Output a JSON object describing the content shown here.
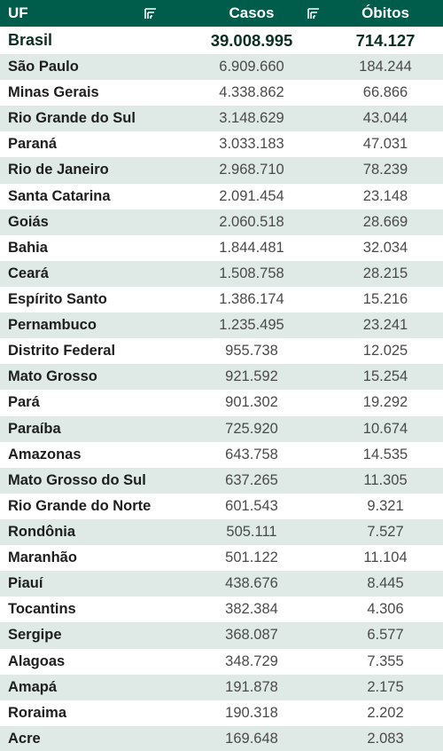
{
  "header": {
    "uf": "UF",
    "casos": "Casos",
    "obitos": "Óbitos"
  },
  "total": {
    "uf": "Brasil",
    "casos": "39.008.995",
    "obitos": "714.127"
  },
  "rows": [
    {
      "uf": "São Paulo",
      "casos": "6.909.660",
      "obitos": "184.244"
    },
    {
      "uf": "Minas Gerais",
      "casos": "4.338.862",
      "obitos": "66.866"
    },
    {
      "uf": "Rio Grande do Sul",
      "casos": "3.148.629",
      "obitos": "43.044"
    },
    {
      "uf": "Paraná",
      "casos": "3.033.183",
      "obitos": "47.031"
    },
    {
      "uf": "Rio de Janeiro",
      "casos": "2.968.710",
      "obitos": "78.239"
    },
    {
      "uf": "Santa Catarina",
      "casos": "2.091.454",
      "obitos": "23.148"
    },
    {
      "uf": "Goiás",
      "casos": "2.060.518",
      "obitos": "28.669"
    },
    {
      "uf": "Bahia",
      "casos": "1.844.481",
      "obitos": "32.034"
    },
    {
      "uf": "Ceará",
      "casos": "1.508.758",
      "obitos": "28.215"
    },
    {
      "uf": "Espírito Santo",
      "casos": "1.386.174",
      "obitos": "15.216"
    },
    {
      "uf": "Pernambuco",
      "casos": "1.235.495",
      "obitos": "23.241"
    },
    {
      "uf": "Distrito Federal",
      "casos": "955.738",
      "obitos": "12.025"
    },
    {
      "uf": "Mato Grosso",
      "casos": "921.592",
      "obitos": "15.254"
    },
    {
      "uf": "Pará",
      "casos": "901.302",
      "obitos": "19.292"
    },
    {
      "uf": "Paraíba",
      "casos": "725.920",
      "obitos": "10.674"
    },
    {
      "uf": "Amazonas",
      "casos": "643.758",
      "obitos": "14.535"
    },
    {
      "uf": "Mato Grosso do Sul",
      "casos": "637.265",
      "obitos": "11.305"
    },
    {
      "uf": "Rio Grande do Norte",
      "casos": "601.543",
      "obitos": "9.321"
    },
    {
      "uf": "Rondônia",
      "casos": "505.111",
      "obitos": "7.527"
    },
    {
      "uf": "Maranhão",
      "casos": "501.122",
      "obitos": "11.104"
    },
    {
      "uf": "Piauí",
      "casos": "438.676",
      "obitos": "8.445"
    },
    {
      "uf": "Tocantins",
      "casos": "382.384",
      "obitos": "4.306"
    },
    {
      "uf": "Sergipe",
      "casos": "368.087",
      "obitos": "6.577"
    },
    {
      "uf": "Alagoas",
      "casos": "348.729",
      "obitos": "7.355"
    },
    {
      "uf": "Amapá",
      "casos": "191.878",
      "obitos": "2.175"
    },
    {
      "uf": "Roraima",
      "casos": "190.318",
      "obitos": "2.202"
    },
    {
      "uf": "Acre",
      "casos": "169.648",
      "obitos": "2.083"
    }
  ],
  "colors": {
    "header_bg": "#005c4b",
    "header_text": "#ffffff",
    "stripe_bg": "#dfe9e6",
    "total_text": "#0c2f24"
  },
  "icons": {
    "sort": "sort-filter-icon"
  }
}
